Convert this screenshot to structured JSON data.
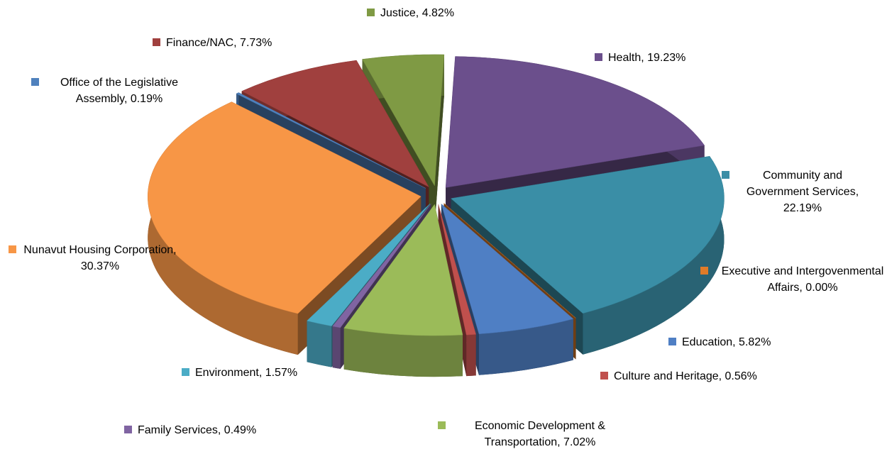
{
  "chart_data": {
    "type": "pie",
    "categories": [
      "Health, 19.23%",
      "Community and Government Services, 22.19%",
      "Executive and Intergovenmental Affairs, 0.00%",
      "Education, 5.82%",
      "Culture and Heritage, 0.56%",
      "Economic Development & Transportation, 7.02%",
      "Family Services, 0.49%",
      "Environment, 1.57%",
      "Nunavut Housing Corporation, 30.37%",
      "Office of the Legislative Assembly, 0.19%",
      "Finance/NAC, 7.73%",
      "Justice, 4.82%"
    ],
    "values": [
      19.23,
      22.19,
      0.0,
      5.82,
      0.56,
      7.02,
      0.49,
      1.57,
      30.37,
      0.19,
      7.73,
      4.82
    ],
    "colors": [
      "#6b4f8c",
      "#3a8ea6",
      "#e07b28",
      "#4f7fc4",
      "#c0504d",
      "#9bbb59",
      "#8064a2",
      "#4bacc6",
      "#f79646",
      "#4f81bd",
      "#a0403e",
      "#7f9a44"
    ],
    "exploded": true,
    "three_d": true
  }
}
